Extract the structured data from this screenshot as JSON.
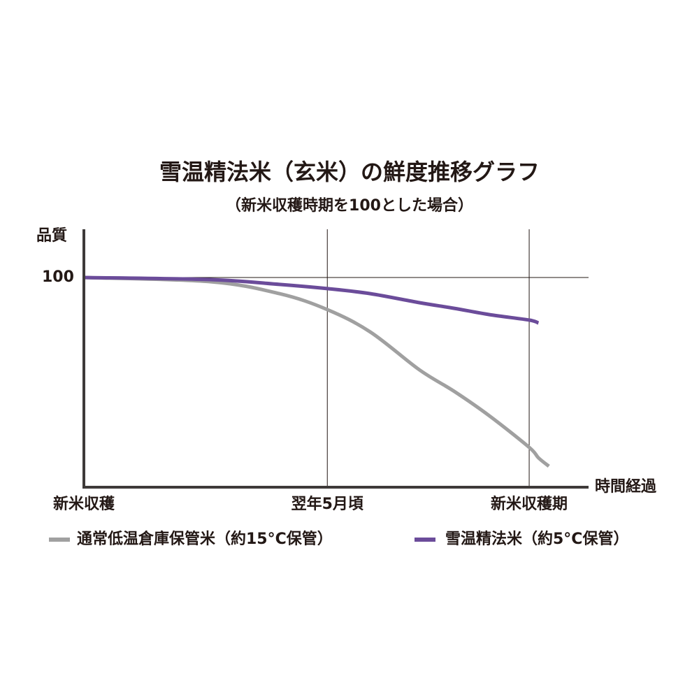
{
  "chart_data": {
    "type": "line",
    "title": "雪温精法米（玄米）の鮮度推移グラフ",
    "subtitle": "（新米収穫時期を100とした場合）",
    "y_label": "品質",
    "x_label": "時間経過",
    "x": [
      0,
      3.4,
      5.27,
      6.56,
      7.72,
      9.04,
      9.98,
      10.93,
      12,
      12.25,
      12.53
    ],
    "series": [
      {
        "name": "通常低温倉庫保管米（約15°C保管）",
        "color": "#a0a0a0",
        "values": [
          100,
          98,
          92.3,
          84.7,
          74,
          56,
          45.7,
          34,
          19,
          14,
          10
        ]
      },
      {
        "name": "雪温精法米（約5°C保管）",
        "color": "#6b4c9a",
        "values": [
          100,
          99,
          96.7,
          94.7,
          92.3,
          88,
          85.3,
          82.3,
          79.7,
          78.3,
          null
        ]
      }
    ],
    "xlim": [
      0,
      13.6
    ],
    "xticks": [
      {
        "value": 0,
        "label": "新米収穫"
      },
      {
        "value": 6.56,
        "label": "翌年5月頃"
      },
      {
        "value": 12,
        "label": "新米収穫期"
      }
    ],
    "ylim": [
      0,
      123
    ],
    "yticks": [
      100
    ],
    "grid": true
  }
}
